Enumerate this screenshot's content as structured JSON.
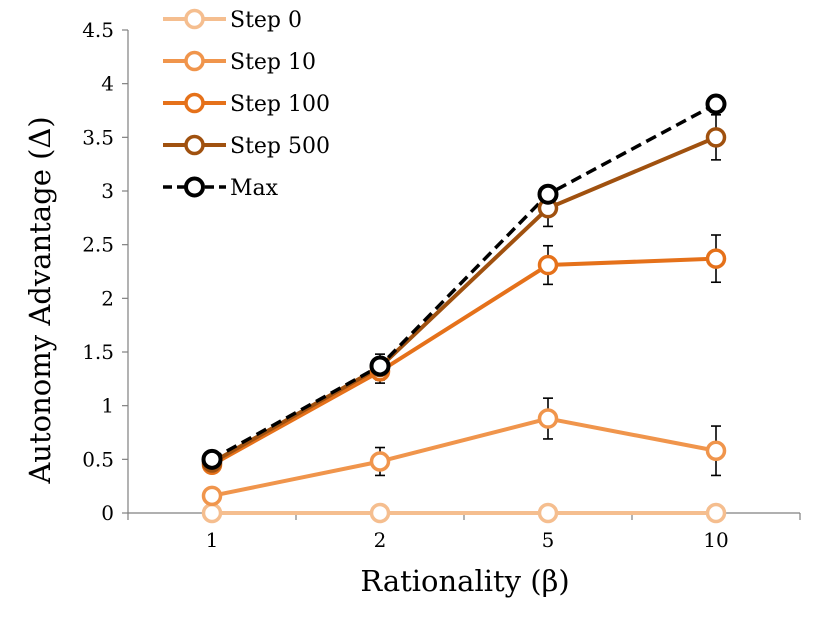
{
  "chart_data": {
    "type": "line",
    "title": "",
    "xlabel": "Rationality (β)",
    "ylabel": "Autonomy Advantage (Δ)",
    "categories": [
      "1",
      "2",
      "5",
      "10"
    ],
    "ylim": [
      0,
      4.5
    ],
    "y_ticks": [
      "0",
      "0.5",
      "1",
      "1.5",
      "2",
      "2.5",
      "3",
      "3.5",
      "4",
      "4.5"
    ],
    "grid": false,
    "legend_position": "top-left",
    "series": [
      {
        "name": "Step 0",
        "values": [
          0.0,
          0.0,
          0.0,
          0.0
        ],
        "errors": [
          0,
          0,
          0,
          0
        ],
        "color": "#F5BE8F",
        "dashed": false
      },
      {
        "name": "Step 10",
        "values": [
          0.16,
          0.48,
          0.88,
          0.58
        ],
        "errors": [
          0.0,
          0.13,
          0.19,
          0.23
        ],
        "color": "#F0954C",
        "dashed": false
      },
      {
        "name": "Step 100",
        "values": [
          0.45,
          1.32,
          2.31,
          2.37
        ],
        "errors": [
          0.0,
          0.11,
          0.18,
          0.22
        ],
        "color": "#E5711A",
        "dashed": false
      },
      {
        "name": "Step 500",
        "values": [
          0.47,
          1.36,
          2.84,
          3.5
        ],
        "errors": [
          0.0,
          0.12,
          0.17,
          0.21
        ],
        "color": "#A0510F",
        "dashed": false
      },
      {
        "name": "Max",
        "values": [
          0.5,
          1.37,
          2.97,
          3.81
        ],
        "errors": [
          0,
          0,
          0,
          0
        ],
        "color": "#000000",
        "dashed": true
      }
    ]
  }
}
